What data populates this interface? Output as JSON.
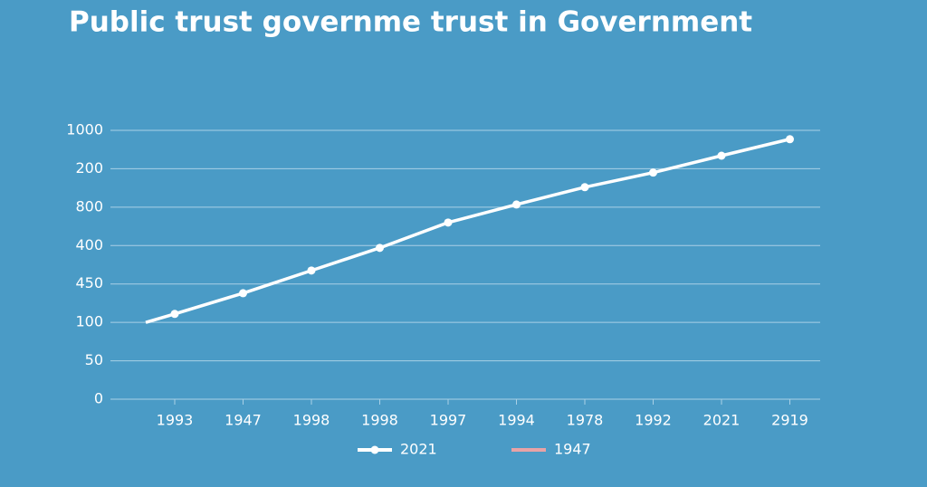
{
  "chart_data": {
    "type": "line",
    "title": "Public trust governme trust in Government",
    "categories": [
      null,
      "1993",
      "1947",
      "1998",
      "1998",
      "1997",
      "1994",
      "1978",
      "1992",
      "2021",
      "2919"
    ],
    "series": [
      {
        "name": "2021",
        "color": "#ffffff",
        "values": [
          2.0,
          2.22,
          2.76,
          3.35,
          3.94,
          4.6,
          5.07,
          5.52,
          5.9,
          6.34,
          6.77
        ]
      },
      {
        "name": "1947",
        "color": "#e8a3a6",
        "values": [
          null,
          null,
          null,
          null,
          null,
          null,
          null,
          null,
          null,
          null,
          null
        ]
      }
    ],
    "ylim": [
      0,
      7
    ],
    "yticks": [
      {
        "value": 0,
        "label": "0"
      },
      {
        "value": 1,
        "label": "50"
      },
      {
        "value": 2,
        "label": "100"
      },
      {
        "value": 3,
        "label": "450"
      },
      {
        "value": 4,
        "label": "400"
      },
      {
        "value": 5,
        "label": "800"
      },
      {
        "value": 6,
        "label": "200"
      },
      {
        "value": 7,
        "label": "1000"
      }
    ],
    "grid": true
  }
}
